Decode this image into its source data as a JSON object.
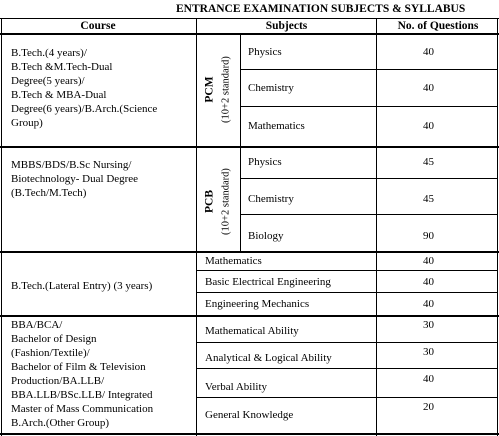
{
  "title": "ENTRANCE EXAMINATION SUBJECTS & SYLLABUS",
  "headers": {
    "course": "Course",
    "subjects": "Subjects",
    "questions": "No. of Questions"
  },
  "groups": [
    {
      "course_lines": [
        "B.Tech.(4 years)/",
        "B.Tech &M.Tech-Dual",
        "Degree(5 years)/",
        "B.Tech & MBA-Dual",
        "Degree(6 years)/B.Arch.(Science",
        "Group)"
      ],
      "stream": "PCM",
      "stream_sub": "(10+2 standard)",
      "subjects": [
        {
          "name": "Physics",
          "count": "40"
        },
        {
          "name": "Chemistry",
          "count": "40"
        },
        {
          "name": "Mathematics",
          "count": "40"
        }
      ]
    },
    {
      "course_lines": [
        "MBBS/BDS/B.Sc Nursing/",
        "Biotechnology- Dual Degree",
        "(B.Tech/M.Tech)"
      ],
      "stream": "PCB",
      "stream_sub": "(10+2 standard)",
      "subjects": [
        {
          "name": "Physics",
          "count": "45"
        },
        {
          "name": "Chemistry",
          "count": "45"
        },
        {
          "name": "Biology",
          "count": "90"
        }
      ]
    },
    {
      "course_lines": [
        "B.Tech.(Lateral Entry) (3 years)"
      ],
      "subjects": [
        {
          "name": "Mathematics",
          "count": "40"
        },
        {
          "name": "Basic Electrical Engineering",
          "count": "40"
        },
        {
          "name": "Engineering Mechanics",
          "count": "40"
        }
      ]
    },
    {
      "course_lines": [
        "BBA/BCA/",
        "Bachelor of Design",
        "(Fashion/Textile)/",
        "Bachelor of Film & Television",
        "Production/BA.LLB/",
        "BBA.LLB/BSc.LLB/ Integrated",
        "Master of Mass Communication",
        "B.Arch.(Other Group)"
      ],
      "subjects": [
        {
          "name": "Mathematical Ability",
          "count": "30"
        },
        {
          "name": "Analytical & Logical Ability",
          "count": "30"
        },
        {
          "name": "Verbal Ability",
          "count": "40"
        },
        {
          "name": "General Knowledge",
          "count": "20"
        }
      ]
    }
  ]
}
